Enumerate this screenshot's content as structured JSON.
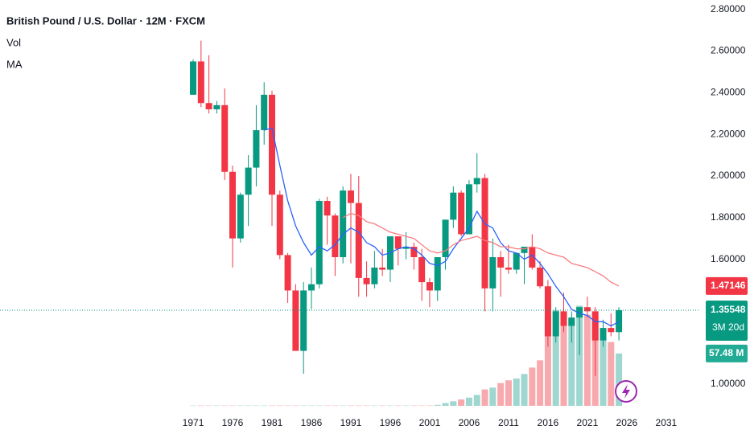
{
  "chart_data": {
    "type": "candlestick",
    "title": "British Pound / U.S. Dollar · 12M · FXCM",
    "indicators": [
      "Vol",
      "MA"
    ],
    "x": [
      1971,
      1972,
      1973,
      1974,
      1975,
      1976,
      1977,
      1978,
      1979,
      1980,
      1981,
      1982,
      1983,
      1984,
      1985,
      1986,
      1987,
      1988,
      1989,
      1990,
      1991,
      1992,
      1993,
      1994,
      1995,
      1996,
      1997,
      1998,
      1999,
      2000,
      2001,
      2002,
      2003,
      2004,
      2005,
      2006,
      2007,
      2008,
      2009,
      2010,
      2011,
      2012,
      2013,
      2014,
      2015,
      2016,
      2017,
      2018,
      2019,
      2020,
      2021,
      2022,
      2023,
      2024,
      2025
    ],
    "open": [
      2.39,
      2.55,
      2.35,
      2.32,
      2.34,
      2.02,
      1.7,
      1.91,
      2.04,
      2.22,
      2.39,
      1.91,
      1.62,
      1.45,
      1.16,
      1.45,
      1.48,
      1.88,
      1.81,
      1.61,
      1.93,
      1.87,
      1.51,
      1.48,
      1.56,
      1.55,
      1.71,
      1.65,
      1.66,
      1.61,
      1.49,
      1.45,
      1.61,
      1.79,
      1.92,
      1.72,
      1.96,
      1.99,
      1.46,
      1.61,
      1.56,
      1.55,
      1.63,
      1.66,
      1.56,
      1.47,
      1.23,
      1.35,
      1.28,
      1.32,
      1.37,
      1.35,
      1.21,
      1.27,
      1.25
    ],
    "high": [
      2.56,
      2.65,
      2.58,
      2.36,
      2.42,
      2.05,
      1.92,
      2.1,
      2.34,
      2.45,
      2.41,
      1.93,
      1.63,
      1.48,
      1.49,
      1.56,
      1.89,
      1.9,
      1.82,
      1.95,
      2.01,
      2.0,
      1.59,
      1.64,
      1.65,
      1.71,
      1.71,
      1.73,
      1.68,
      1.65,
      1.51,
      1.61,
      1.79,
      1.95,
      1.93,
      1.98,
      2.11,
      2.01,
      1.7,
      1.64,
      1.67,
      1.63,
      1.66,
      1.72,
      1.59,
      1.5,
      1.37,
      1.44,
      1.35,
      1.37,
      1.42,
      1.37,
      1.31,
      1.34,
      1.37
    ],
    "low": [
      2.39,
      2.33,
      2.3,
      2.3,
      1.98,
      1.56,
      1.68,
      1.76,
      1.95,
      2.15,
      1.76,
      1.6,
      1.39,
      1.17,
      1.05,
      1.36,
      1.46,
      1.67,
      1.52,
      1.58,
      1.58,
      1.42,
      1.42,
      1.46,
      1.52,
      1.49,
      1.57,
      1.6,
      1.55,
      1.4,
      1.37,
      1.4,
      1.55,
      1.75,
      1.71,
      1.72,
      1.92,
      1.35,
      1.35,
      1.42,
      1.53,
      1.53,
      1.48,
      1.55,
      1.46,
      1.18,
      1.2,
      1.25,
      1.2,
      1.14,
      1.32,
      1.04,
      1.18,
      1.23,
      1.21
    ],
    "close": [
      2.55,
      2.35,
      2.32,
      2.34,
      2.02,
      1.7,
      1.91,
      2.04,
      2.22,
      2.39,
      1.91,
      1.62,
      1.45,
      1.16,
      1.45,
      1.48,
      1.88,
      1.81,
      1.61,
      1.93,
      1.87,
      1.51,
      1.48,
      1.56,
      1.55,
      1.71,
      1.65,
      1.66,
      1.61,
      1.49,
      1.45,
      1.61,
      1.79,
      1.92,
      1.72,
      1.96,
      1.99,
      1.46,
      1.61,
      1.56,
      1.55,
      1.63,
      1.66,
      1.56,
      1.47,
      1.23,
      1.35,
      1.28,
      1.32,
      1.37,
      1.35,
      1.21,
      1.27,
      1.25,
      1.35548
    ],
    "volume": [
      0.3,
      0.3,
      0.3,
      0.3,
      0.3,
      0.3,
      0.3,
      0.3,
      0.3,
      0.3,
      0.3,
      0.3,
      0.3,
      0.3,
      0.3,
      0.3,
      0.3,
      0.3,
      0.3,
      0.3,
      0.3,
      0.3,
      0.3,
      0.3,
      0.3,
      0.3,
      0.3,
      0.3,
      0.3,
      0.3,
      0.3,
      1,
      3,
      5,
      7,
      9,
      12,
      18,
      20,
      25,
      28,
      30,
      35,
      42,
      50,
      97,
      105,
      100,
      95,
      110,
      100,
      95,
      85,
      70,
      57.48
    ],
    "volume_last_label": "57.48 M",
    "volume_lim": [
      0,
      150
    ],
    "countdown": "3M 20d",
    "up_color": "#089981",
    "down_color": "#f23645",
    "volume_up_color": "#9fd6cf",
    "volume_down_color": "#f7a9ae",
    "ma": [
      {
        "color": "#2962ff",
        "values": [
          null,
          null,
          null,
          null,
          null,
          null,
          null,
          null,
          null,
          2.22,
          2.23,
          2.05,
          1.88,
          1.76,
          1.68,
          1.62,
          1.66,
          1.64,
          1.67,
          1.72,
          1.75,
          1.73,
          1.68,
          1.66,
          1.62,
          1.63,
          1.65,
          1.66,
          1.65,
          1.62,
          1.58,
          1.57,
          1.59,
          1.65,
          1.7,
          1.75,
          1.83,
          1.77,
          1.75,
          1.68,
          1.64,
          1.63,
          1.6,
          1.62,
          1.58,
          1.53,
          1.47,
          1.42,
          1.36,
          1.34,
          1.33,
          1.3,
          1.3,
          1.28,
          1.3
        ]
      },
      {
        "color": "#f77c80",
        "values": [
          null,
          null,
          null,
          null,
          null,
          null,
          null,
          null,
          null,
          null,
          null,
          null,
          null,
          null,
          null,
          null,
          null,
          null,
          null,
          1.8,
          1.82,
          1.81,
          1.78,
          1.77,
          1.75,
          1.73,
          1.72,
          1.71,
          1.7,
          1.67,
          1.64,
          1.63,
          1.64,
          1.67,
          1.69,
          1.7,
          1.71,
          1.69,
          1.68,
          1.66,
          1.66,
          1.65,
          1.65,
          1.66,
          1.65,
          1.63,
          1.62,
          1.61,
          1.58,
          1.57,
          1.56,
          1.54,
          1.52,
          1.49,
          1.47146
        ]
      }
    ],
    "xlim": [
      1946.5,
      2035.3
    ],
    "xticks": [
      1971,
      1976,
      1981,
      1986,
      1991,
      1996,
      2001,
      2006,
      2011,
      2016,
      2021,
      2026,
      2031
    ],
    "ylim": [
      0.896,
      2.845
    ],
    "yticks": [
      {
        "value": 2.8,
        "label": "2.80000"
      },
      {
        "value": 2.6,
        "label": "2.60000"
      },
      {
        "value": 2.4,
        "label": "2.40000"
      },
      {
        "value": 2.2,
        "label": "2.20000"
      },
      {
        "value": 2.0,
        "label": "2.00000"
      },
      {
        "value": 1.8,
        "label": "1.80000"
      },
      {
        "value": 1.6,
        "label": "1.60000"
      },
      {
        "value": 1.0,
        "label": "1.00000"
      }
    ]
  }
}
